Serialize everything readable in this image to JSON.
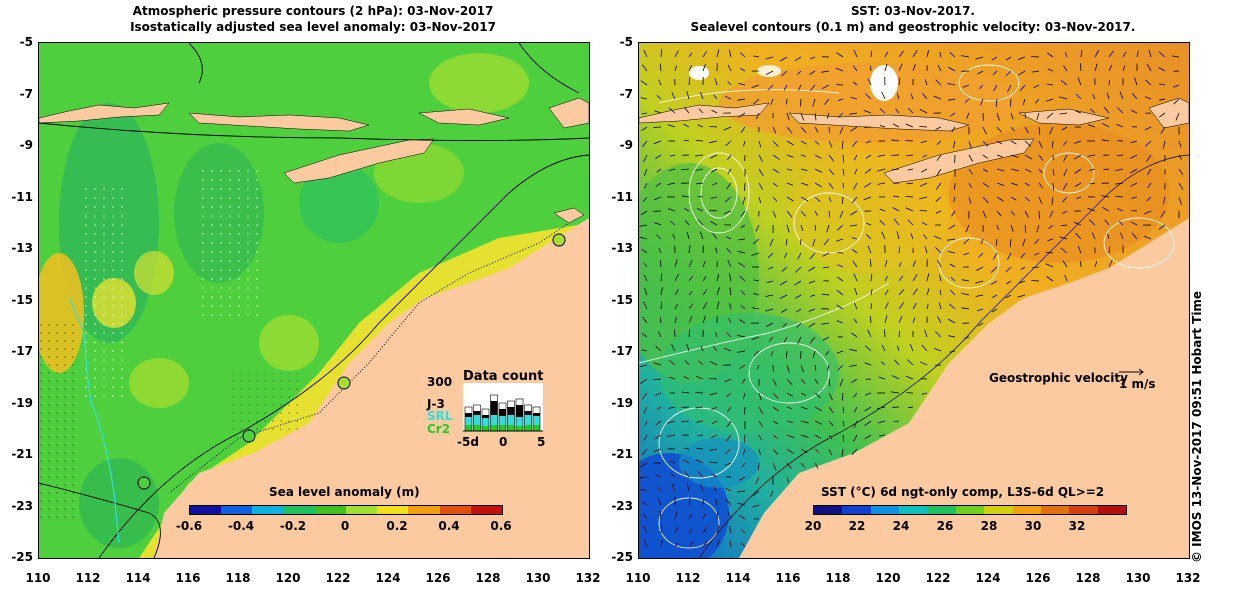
{
  "left_panel": {
    "title_line1": "Atmospheric pressure contours (2 hPa): 03-Nov-2017",
    "title_line2": "Isostatically adjusted sea level anomaly: 03-Nov-2017",
    "colorbar": {
      "title": "Sea level anomaly (m)",
      "ticks": [
        "-0.6",
        "-0.4",
        "-0.2",
        "0",
        "0.2",
        "0.4",
        "0.6"
      ],
      "colors": [
        "#1010a0",
        "#1060e0",
        "#10b0e0",
        "#20c060",
        "#40c020",
        "#a0e030",
        "#f0e020",
        "#f0a010",
        "#e05010",
        "#c01010"
      ]
    },
    "data_count": {
      "title": "Data count",
      "ymax": "300",
      "series": [
        {
          "name": "J-3",
          "color": "#000000"
        },
        {
          "name": "SRL",
          "color": "#33dddd"
        },
        {
          "name": "Cr2",
          "color": "#22cc22"
        }
      ],
      "xticks": [
        "-5d",
        "0",
        "5"
      ]
    }
  },
  "right_panel": {
    "title_line1": "SST: 03-Nov-2017.",
    "title_line2": "Sealevel contours (0.1 m) and geostrophic velocity: 03-Nov-2017.",
    "colorbar": {
      "title": "SST (°C) 6d ngt-only comp, L3S-6d QL>=2",
      "ticks": [
        "20",
        "22",
        "24",
        "26",
        "28",
        "30",
        "32"
      ],
      "colors": [
        "#101080",
        "#1040d0",
        "#1090e0",
        "#10c0c0",
        "#20c060",
        "#70d020",
        "#d0d010",
        "#f0a010",
        "#e07010",
        "#d04010",
        "#b01010"
      ]
    },
    "velocity_legend": {
      "label": "Geostrophic velocity",
      "scale": "1 m/s"
    }
  },
  "axes": {
    "lon_ticks": [
      "110",
      "112",
      "114",
      "116",
      "118",
      "120",
      "122",
      "124",
      "126",
      "128",
      "130",
      "132"
    ],
    "lat_ticks": [
      "-5",
      "-7",
      "-9",
      "-11",
      "-13",
      "-15",
      "-17",
      "-19",
      "-21",
      "-23",
      "-25"
    ]
  },
  "credit": "© IMOS 13-Nov-2017 09:51 Hobart Time",
  "colors": {
    "land": "#fccaa0",
    "sla_background": "#4ed03e",
    "sst_background": "#f0a030"
  }
}
